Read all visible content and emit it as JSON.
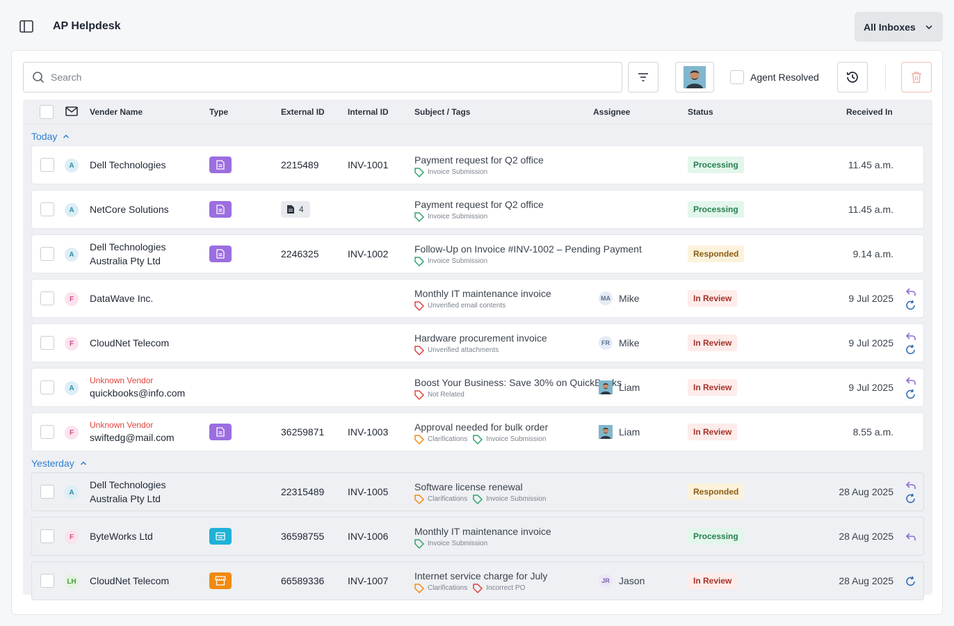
{
  "app": {
    "title": "AP Helpdesk",
    "inbox_selector": "All Inboxes"
  },
  "toolbar": {
    "search_placeholder": "Search",
    "agent_resolved_label": "Agent Resolved"
  },
  "table": {
    "columns": {
      "vendor": "Vender Name",
      "type": "Type",
      "external_id": "External ID",
      "internal_id": "Internal ID",
      "subject": "Subject / Tags",
      "assignee": "Assignee",
      "status": "Status",
      "received": "Received In"
    },
    "groups": [
      {
        "label": "Today"
      },
      {
        "label": "Yesterday"
      }
    ],
    "rows": [
      {
        "source": "A",
        "vendor": "Dell Technologies",
        "type_icon": "invoice-document-icon",
        "external_id": "2215489",
        "internal_id": "INV-1001",
        "subject": "Payment request for Q2 office",
        "tags": [
          {
            "label": "Invoice Submission",
            "color": "#2ea36a"
          }
        ],
        "assignee": "",
        "status": "Processing",
        "received": "11.45 a.m."
      },
      {
        "source": "A",
        "vendor": "NetCore Solutions",
        "type_icon": "invoice-document-icon",
        "attachment_count": "4",
        "internal_id": "",
        "subject": "Payment request for Q2 office",
        "tags": [
          {
            "label": "Invoice Submission",
            "color": "#2ea36a"
          }
        ],
        "assignee": "",
        "status": "Processing",
        "received": "11.45 a.m."
      },
      {
        "source": "A",
        "vendor": "Dell Technologies",
        "vendor_line2": "Australia Pty Ltd",
        "type_icon": "invoice-document-icon",
        "external_id": "2246325",
        "internal_id": "INV-1002",
        "subject": "Follow-Up on Invoice #INV-1002 – Pending Payment",
        "tags": [
          {
            "label": "Invoice Submission",
            "color": "#2ea36a"
          }
        ],
        "assignee": "",
        "status": "Responded",
        "received": "9.14 a.m."
      },
      {
        "source": "F",
        "vendor": "DataWave Inc.",
        "external_id": "",
        "internal_id": "",
        "subject": "Monthly IT maintenance invoice",
        "tags": [
          {
            "label": "Unverified email contents",
            "color": "#e0433b"
          }
        ],
        "assignee_initials": "MA",
        "assignee": "Mike",
        "status": "In Review",
        "received": "9 Jul 2025",
        "actions": [
          "reply-icon",
          "forward-icon"
        ]
      },
      {
        "source": "F",
        "vendor": "CloudNet Telecom",
        "external_id": "",
        "internal_id": "",
        "subject": "Hardware procurement invoice",
        "tags": [
          {
            "label": "Unverified attachments",
            "color": "#e0433b"
          }
        ],
        "assignee_initials": "FR",
        "assignee": "Mike",
        "status": "In Review",
        "received": "9 Jul 2025",
        "actions": [
          "reply-icon",
          "forward-icon"
        ]
      },
      {
        "source": "A",
        "unknown_label": "Unknown Vendor",
        "vendor": "quickbooks@info.com",
        "external_id": "",
        "internal_id": "",
        "subject": "Boost Your Business: Save 30% on QuickBooks",
        "tags": [
          {
            "label": "Not Related",
            "color": "#e0433b"
          }
        ],
        "assignee": "Liam",
        "status": "In Review",
        "received": "9 Jul 2025",
        "actions": [
          "reply-icon",
          "forward-icon"
        ]
      },
      {
        "source": "F",
        "unknown_label": "Unknown Vendor",
        "vendor": "swiftedg@mail.com",
        "type_icon": "invoice-document-icon",
        "external_id": "36259871",
        "internal_id": "INV-1003",
        "subject": "Approval needed for bulk order",
        "tags": [
          {
            "label": "Clarifications",
            "color": "#f08a12"
          },
          {
            "label": "Invoice Submission",
            "color": "#2ea36a"
          }
        ],
        "assignee": "Liam",
        "status": "In Review",
        "received": "8.55 a.m."
      },
      {
        "source": "A",
        "vendor": "Dell Technologies",
        "vendor_line2": "Australia Pty Ltd",
        "external_id": "22315489",
        "internal_id": "INV-1005",
        "subject": "Software license renewal",
        "tags": [
          {
            "label": "Clarifications",
            "color": "#f08a12"
          },
          {
            "label": "Invoice Submission",
            "color": "#2ea36a"
          }
        ],
        "assignee": "",
        "status": "Responded",
        "received": "28 Aug 2025",
        "actions": [
          "reply-icon",
          "forward-icon"
        ]
      },
      {
        "source": "F",
        "vendor": "ByteWorks Ltd",
        "type_icon": "statement-icon",
        "external_id": "36598755",
        "internal_id": "INV-1006",
        "subject": "Monthly IT maintenance invoice",
        "tags": [
          {
            "label": "Invoice Submission",
            "color": "#2ea36a"
          }
        ],
        "assignee": "",
        "status": "Processing",
        "received": "28 Aug 2025",
        "actions": [
          "reply-icon"
        ]
      },
      {
        "source": "LH",
        "vendor": "CloudNet Telecom",
        "type_icon": "store-icon",
        "external_id": "66589336",
        "internal_id": "INV-1007",
        "subject": "Internet service charge for July",
        "tags": [
          {
            "label": "Clarifications",
            "color": "#f08a12"
          },
          {
            "label": "Incorrect PO",
            "color": "#e0433b"
          }
        ],
        "assignee_initials": "JR",
        "assignee": "Jason",
        "status": "In Review",
        "received": "28 Aug 2025",
        "actions": [
          "forward-icon"
        ]
      }
    ]
  },
  "colors": {
    "accent": "#2f7fd2",
    "processing": "#27804f",
    "responded": "#8a5d13",
    "in_review": "#a4322b",
    "unknown_vendor": "#e0433b"
  }
}
